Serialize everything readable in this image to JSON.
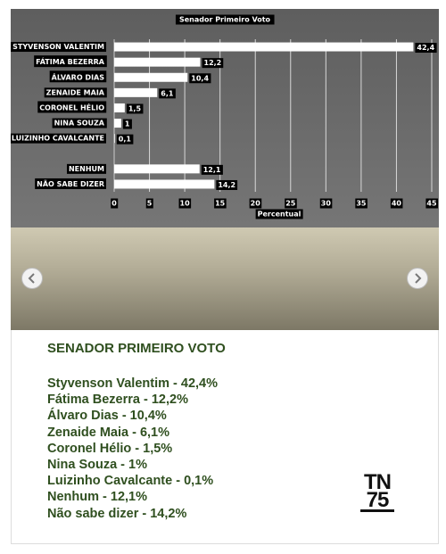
{
  "chart_data": {
    "type": "bar",
    "orientation": "horizontal",
    "title": "Senador Primeiro Voto",
    "categories": [
      "STYVENSON VALENTIM",
      "FÁTIMA BEZERRA",
      "ÁLVARO DIAS",
      "ZENAIDE MAIA",
      "CORONEL HÉLIO",
      "NINA SOUZA",
      "LUIZINHO CAVALCANTE",
      null,
      "NENHUM",
      "NÃO SABE DIZER"
    ],
    "values": [
      42.4,
      12.2,
      10.4,
      6.1,
      1.5,
      1,
      0.1,
      null,
      12.1,
      14.2
    ],
    "value_labels": [
      "42,4",
      "12,2",
      "10,4",
      "6,1",
      "1,5",
      "1",
      "0,1",
      null,
      "12,1",
      "14,2"
    ],
    "color": "#ffffff",
    "xlabel": "Percentual",
    "xlim": [
      0,
      45
    ],
    "xticks": [
      0,
      5,
      10,
      15,
      20,
      25,
      30,
      35,
      40,
      45
    ],
    "grid": true
  },
  "article": {
    "heading": "SENADOR PRIMEIRO VOTO",
    "items": [
      "Styvenson Valentim - 42,4%",
      "Fátima Bezerra - 12,2%",
      "Álvaro Dias - 10,4%",
      "Zenaide Maia - 6,1%",
      "Coronel Hélio - 1,5%",
      "Nina Souza - 1%",
      "Luizinho Cavalcante - 0,1%",
      "Nenhum - 12,1%",
      "Não sabe dizer - 14,2%"
    ]
  },
  "logo": {
    "top": "TN",
    "bottom": "75"
  }
}
